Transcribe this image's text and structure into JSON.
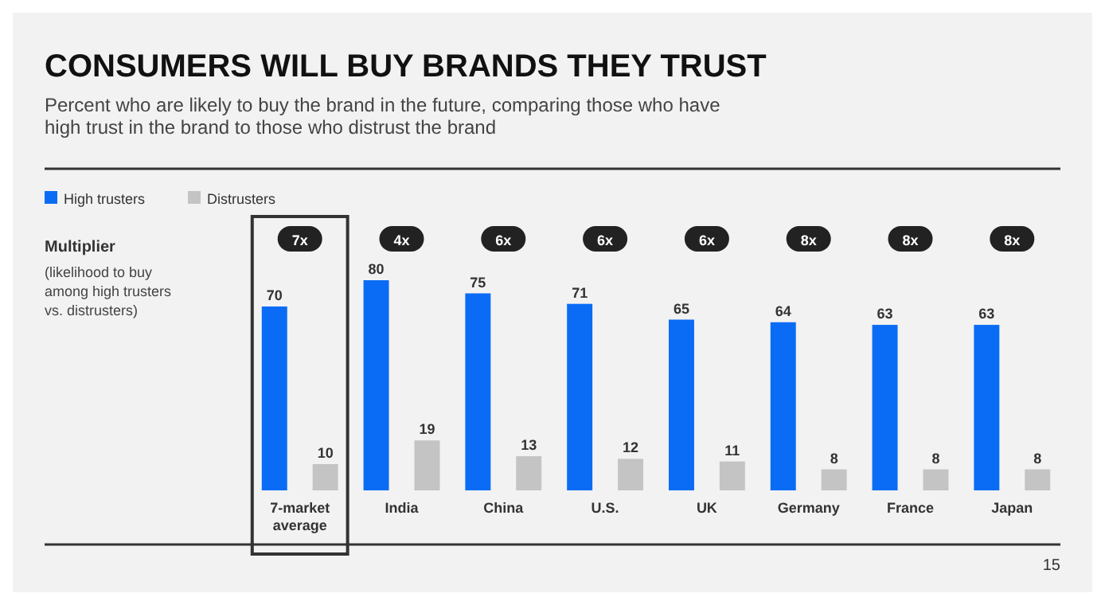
{
  "chart_data": {
    "type": "bar",
    "title": "CONSUMERS WILL BUY BRANDS THEY TRUST",
    "subtitle": "Percent who are likely to buy the brand in the future, comparing those who have high trust in the brand to those who distrust the brand",
    "categories": [
      "7-market average",
      "India",
      "China",
      "U.S.",
      "UK",
      "Germany",
      "France",
      "Japan"
    ],
    "series": [
      {
        "name": "High trusters",
        "color": "#0a6cf5",
        "values": [
          70,
          80,
          75,
          71,
          65,
          64,
          63,
          63
        ]
      },
      {
        "name": "Distrusters",
        "color": "#c4c4c4",
        "values": [
          10,
          19,
          13,
          12,
          11,
          8,
          8,
          8
        ]
      }
    ],
    "data_labels": true,
    "legend": "top left",
    "annotations": [
      "7x",
      "4x",
      "6x",
      "6x",
      "6x",
      "8x",
      "8x",
      "8x",
      "Multiplier",
      "(likelihood to buy among high trusters vs. distrusters)",
      "15"
    ]
  }
}
